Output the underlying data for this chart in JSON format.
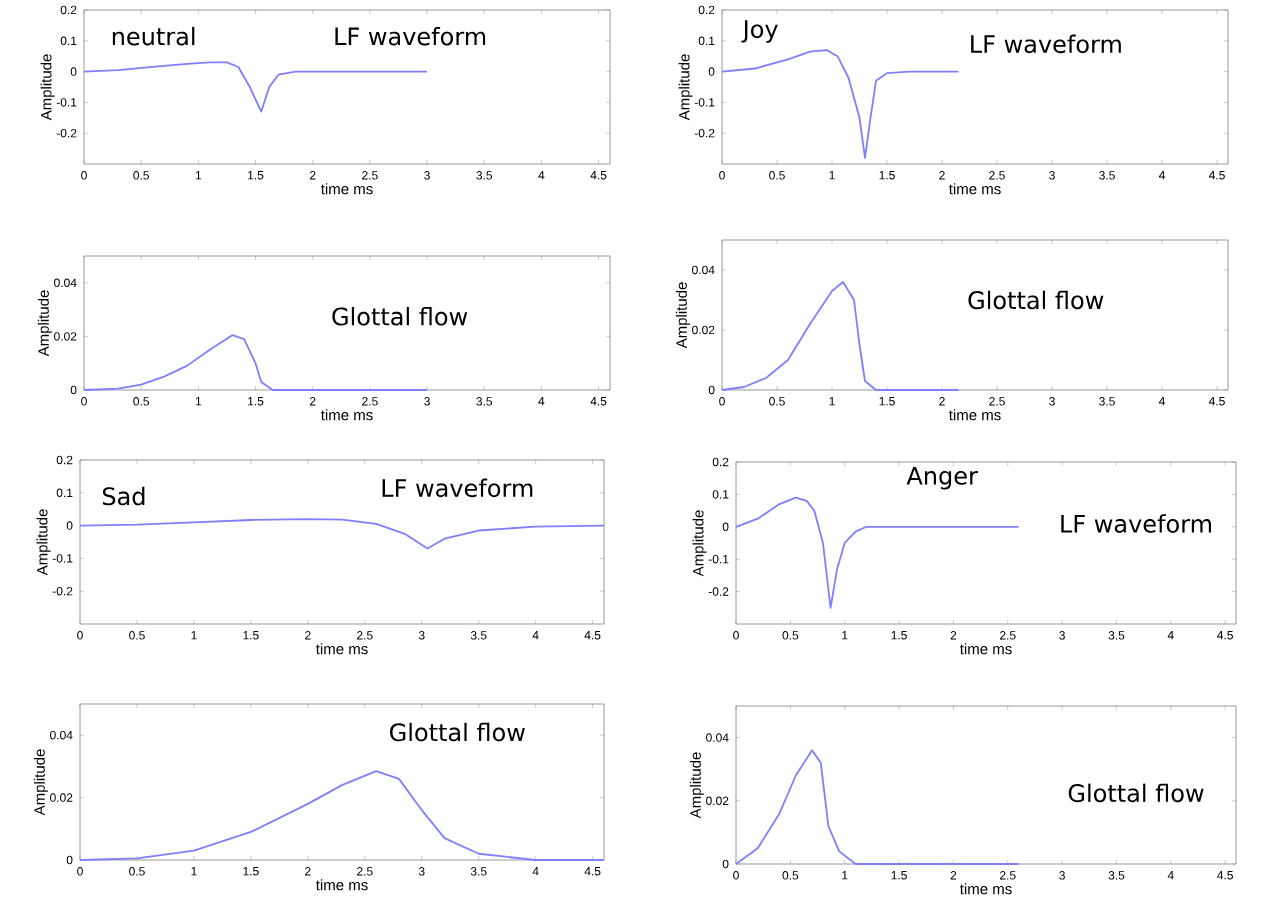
{
  "chart_data": [
    {
      "type": "line",
      "xlabel": "time ms",
      "ylabel": "Amplitude",
      "annotations": [
        "neutral",
        "LF waveform"
      ],
      "xlim": [
        0,
        4.6
      ],
      "xticks": [
        0,
        0.5,
        1,
        1.5,
        2,
        2.5,
        3,
        3.5,
        4,
        4.5
      ],
      "ylim": [
        -0.3,
        0.2
      ],
      "yticks": [
        -0.2,
        -0.1,
        0,
        0.1,
        0.2
      ],
      "color": "#7f7fff",
      "x": [
        0,
        0.3,
        0.6,
        0.9,
        1.1,
        1.25,
        1.35,
        1.45,
        1.55,
        1.62,
        1.7,
        1.85,
        2.5,
        3
      ],
      "values": [
        0,
        0.005,
        0.015,
        0.025,
        0.03,
        0.03,
        0.015,
        -0.05,
        -0.13,
        -0.05,
        -0.01,
        0,
        0,
        0
      ]
    },
    {
      "type": "line",
      "xlabel": "time ms",
      "ylabel": "Amplitude",
      "annotations": [
        "Glottal flow"
      ],
      "xlim": [
        0,
        4.6
      ],
      "xticks": [
        0,
        0.5,
        1,
        1.5,
        2,
        2.5,
        3,
        3.5,
        4,
        4.5
      ],
      "ylim": [
        0,
        0.05
      ],
      "yticks": [
        0,
        0.02,
        0.04
      ],
      "color": "#7f7fff",
      "x": [
        0,
        0.3,
        0.5,
        0.7,
        0.9,
        1.1,
        1.3,
        1.4,
        1.5,
        1.55,
        1.65,
        3
      ],
      "values": [
        0,
        0.0005,
        0.002,
        0.005,
        0.009,
        0.015,
        0.0205,
        0.019,
        0.01,
        0.003,
        0,
        0
      ]
    },
    {
      "type": "line",
      "xlabel": "time ms",
      "ylabel": "Amplitude",
      "annotations": [
        "Joy",
        "LF waveform"
      ],
      "xlim": [
        0,
        4.6
      ],
      "xticks": [
        0,
        0.5,
        1,
        1.5,
        2,
        2.5,
        3,
        3.5,
        4,
        4.5
      ],
      "ylim": [
        -0.3,
        0.2
      ],
      "yticks": [
        -0.2,
        -0.1,
        0,
        0.1,
        0.2
      ],
      "color": "#7f7fff",
      "x": [
        0,
        0.3,
        0.6,
        0.8,
        0.95,
        1.05,
        1.15,
        1.25,
        1.3,
        1.35,
        1.4,
        1.5,
        1.7,
        2.15
      ],
      "values": [
        0,
        0.01,
        0.04,
        0.065,
        0.07,
        0.05,
        -0.02,
        -0.15,
        -0.28,
        -0.15,
        -0.03,
        -0.005,
        0,
        0
      ]
    },
    {
      "type": "line",
      "xlabel": "time ms",
      "ylabel": "Amplitude",
      "annotations": [
        "Glottal flow"
      ],
      "xlim": [
        0,
        4.6
      ],
      "xticks": [
        0,
        0.5,
        1,
        1.5,
        2,
        2.5,
        3,
        3.5,
        4,
        4.5
      ],
      "ylim": [
        0,
        0.05
      ],
      "yticks": [
        0,
        0.02,
        0.04
      ],
      "color": "#7f7fff",
      "x": [
        0,
        0.2,
        0.4,
        0.6,
        0.8,
        1.0,
        1.1,
        1.2,
        1.25,
        1.3,
        1.4,
        2.15
      ],
      "values": [
        0,
        0.001,
        0.004,
        0.01,
        0.022,
        0.033,
        0.036,
        0.03,
        0.015,
        0.003,
        0,
        0
      ]
    },
    {
      "type": "line",
      "xlabel": "time ms",
      "ylabel": "Amplitude",
      "annotations": [
        "Sad",
        "LF waveform"
      ],
      "xlim": [
        0,
        4.6
      ],
      "xticks": [
        0,
        0.5,
        1,
        1.5,
        2,
        2.5,
        3,
        3.5,
        4,
        4.5
      ],
      "ylim": [
        -0.3,
        0.2
      ],
      "yticks": [
        -0.2,
        -0.1,
        0,
        0.1,
        0.2
      ],
      "color": "#7f7fff",
      "x": [
        0,
        0.5,
        1,
        1.5,
        2,
        2.3,
        2.6,
        2.85,
        3.05,
        3.2,
        3.5,
        4,
        4.6
      ],
      "values": [
        0,
        0.003,
        0.01,
        0.017,
        0.02,
        0.018,
        0.005,
        -0.025,
        -0.07,
        -0.04,
        -0.015,
        -0.003,
        0
      ]
    },
    {
      "type": "line",
      "xlabel": "time ms",
      "ylabel": "Amplitude",
      "annotations": [
        "Glottal flow"
      ],
      "xlim": [
        0,
        4.6
      ],
      "xticks": [
        0,
        0.5,
        1,
        1.5,
        2,
        2.5,
        3,
        3.5,
        4,
        4.5
      ],
      "ylim": [
        0,
        0.05
      ],
      "yticks": [
        0,
        0.02,
        0.04
      ],
      "color": "#7f7fff",
      "x": [
        0,
        0.5,
        1,
        1.5,
        2,
        2.3,
        2.6,
        2.8,
        3,
        3.2,
        3.5,
        4,
        4.6
      ],
      "values": [
        0,
        0.0005,
        0.003,
        0.009,
        0.018,
        0.024,
        0.0285,
        0.026,
        0.016,
        0.007,
        0.002,
        0,
        0
      ]
    },
    {
      "type": "line",
      "xlabel": "time ms",
      "ylabel": "Amplitude",
      "annotations": [
        "Anger",
        "LF waveform"
      ],
      "xlim": [
        0,
        4.6
      ],
      "xticks": [
        0,
        0.5,
        1,
        1.5,
        2,
        2.5,
        3,
        3.5,
        4,
        4.5
      ],
      "ylim": [
        -0.3,
        0.2
      ],
      "yticks": [
        -0.2,
        -0.1,
        0,
        0.1,
        0.2
      ],
      "color": "#7f7fff",
      "x": [
        0,
        0.2,
        0.4,
        0.55,
        0.65,
        0.72,
        0.8,
        0.87,
        0.93,
        1.0,
        1.1,
        1.2,
        2.6
      ],
      "values": [
        0,
        0.025,
        0.07,
        0.09,
        0.08,
        0.05,
        -0.05,
        -0.25,
        -0.13,
        -0.05,
        -0.015,
        0,
        0
      ]
    },
    {
      "type": "line",
      "xlabel": "time ms",
      "ylabel": "Amplitude",
      "annotations": [
        "Glottal flow"
      ],
      "xlim": [
        0,
        4.6
      ],
      "xticks": [
        0,
        0.5,
        1,
        1.5,
        2,
        2.5,
        3,
        3.5,
        4,
        4.5
      ],
      "ylim": [
        0,
        0.05
      ],
      "yticks": [
        0,
        0.02,
        0.04
      ],
      "color": "#7f7fff",
      "x": [
        0,
        0.2,
        0.4,
        0.55,
        0.7,
        0.78,
        0.85,
        0.95,
        1.1,
        2.6
      ],
      "values": [
        0,
        0.005,
        0.016,
        0.028,
        0.036,
        0.032,
        0.012,
        0.004,
        0,
        0
      ]
    }
  ]
}
